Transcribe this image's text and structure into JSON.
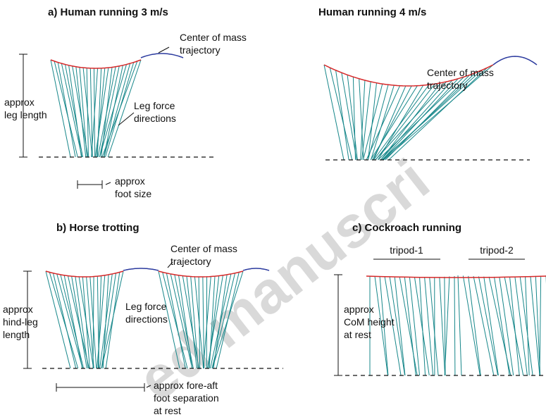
{
  "panels": [
    {
      "title": "a) Human running  3 m/s",
      "com_label": [
        "Center of mass",
        "trajectory"
      ],
      "height_label": [
        "approx",
        "leg length"
      ],
      "force_label": [
        "Leg force",
        "directions"
      ],
      "size_label": [
        "approx",
        "foot size"
      ]
    },
    {
      "title": "Human running 4 m/s",
      "com_label": [
        "Center of mass",
        "trajectory"
      ]
    },
    {
      "title": "b) Horse trotting",
      "com_label": [
        "Center of mass",
        "trajectory"
      ],
      "height_label": [
        "approx",
        "hind-leg",
        "length"
      ],
      "force_label": [
        "Leg force",
        "directions"
      ],
      "size_label": [
        "approx fore-aft",
        "foot separation",
        "at rest"
      ]
    },
    {
      "title": "c) Cockroach running",
      "tripods": [
        "tripod-1",
        "tripod-2"
      ],
      "height_label": [
        "approx",
        "CoM height",
        "at rest"
      ]
    }
  ],
  "watermark": "ed manuscri"
}
